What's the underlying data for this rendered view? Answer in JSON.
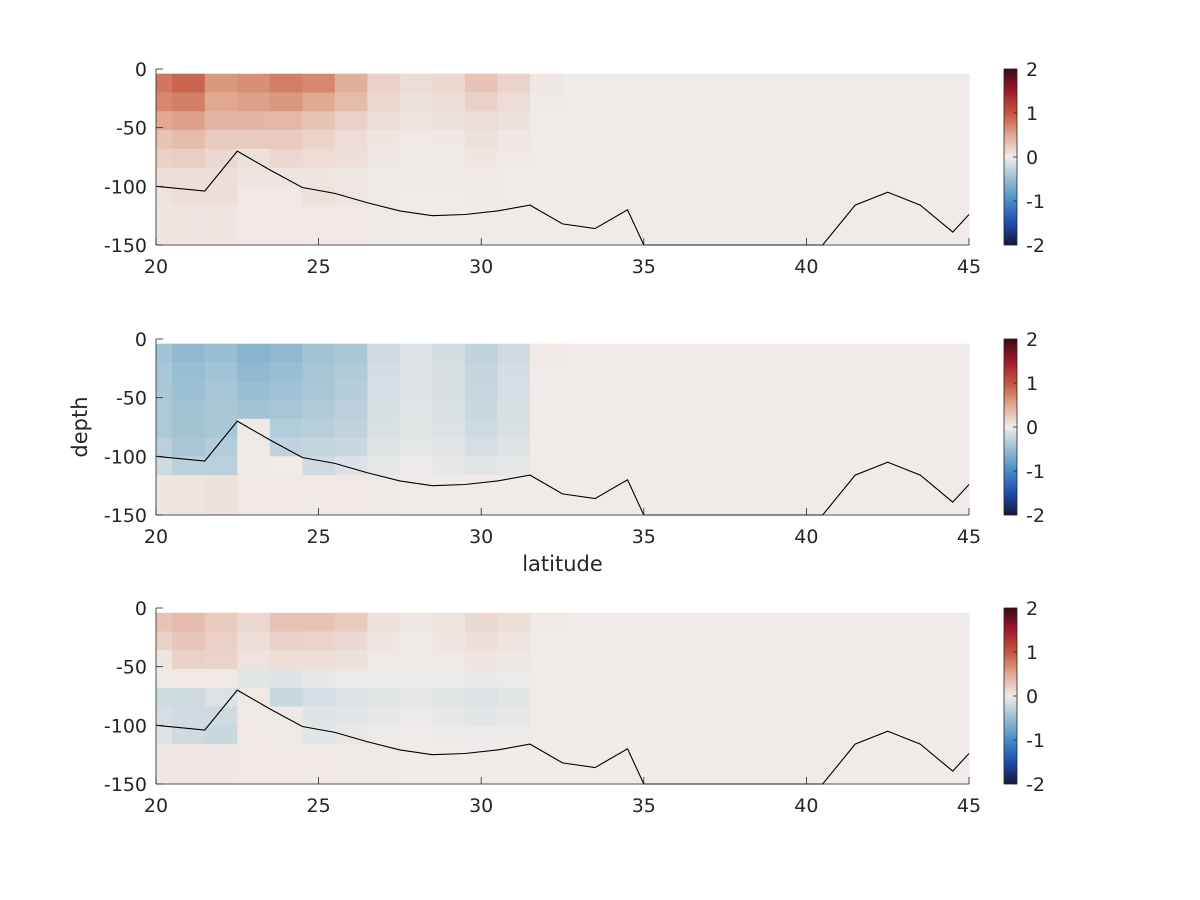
{
  "figure": {
    "background": "#ffffff"
  },
  "chart_data": [
    {
      "type": "heatmap",
      "title": "",
      "xlabel": "",
      "ylabel": "",
      "xlim": [
        20,
        45
      ],
      "ylim": [
        -150,
        0
      ],
      "xticks": [
        "20",
        "25",
        "30",
        "35",
        "40",
        "45"
      ],
      "yticks": [
        "0",
        "-50",
        "-100",
        "-150"
      ],
      "colorbar": {
        "clim": [
          -2,
          2
        ],
        "ticks": [
          "2",
          "1",
          "0",
          "-1",
          "-2"
        ]
      },
      "bottom_line": {
        "x": [
          20,
          21.5,
          22.5,
          23.5,
          24.5,
          25.5,
          26.5,
          27.5,
          28.5,
          29.5,
          30.5,
          31.5,
          32.5,
          33.5,
          34.5,
          35,
          36,
          37,
          38,
          39,
          40,
          40.5,
          41.5,
          42.5,
          43.5,
          44.5,
          45
        ],
        "y": [
          -100,
          -104,
          -70,
          -86,
          -101,
          -106,
          -114,
          -121,
          -125,
          -124,
          -121,
          -116,
          -132,
          -136,
          -120,
          -150,
          -150,
          -150,
          -150,
          -150,
          -150,
          -150,
          -116,
          -105,
          -116,
          -139,
          -124
        ]
      },
      "cells": {
        "x_edges": [
          20,
          20.5,
          21.5,
          22.5,
          23.5,
          24.5,
          25.5,
          26.5,
          27.5,
          28.5,
          29.5,
          30.5,
          31.5,
          32.5,
          45
        ],
        "y_edges": [
          -4,
          -20,
          -36,
          -52,
          -68,
          -84,
          -100,
          -116,
          -150
        ],
        "values": [
          [
            0.8,
            0.9,
            0.6,
            0.65,
            0.75,
            0.7,
            0.45,
            0.2,
            0.12,
            0.15,
            0.3,
            0.18,
            0.04,
            0.01
          ],
          [
            0.7,
            0.75,
            0.5,
            0.55,
            0.6,
            0.5,
            0.35,
            0.15,
            0.08,
            0.1,
            0.2,
            0.12,
            0.02,
            0.01
          ],
          [
            0.5,
            0.55,
            0.4,
            0.4,
            0.38,
            0.3,
            0.2,
            0.1,
            0.06,
            0.08,
            0.12,
            0.08,
            0.01,
            0.01
          ],
          [
            0.3,
            0.35,
            0.25,
            0.25,
            0.25,
            0.18,
            0.12,
            0.05,
            0.03,
            0.04,
            0.08,
            0.04,
            0.01,
            0.01
          ],
          [
            0.2,
            0.22,
            0.15,
            0.08,
            0.15,
            0.12,
            0.1,
            0.04,
            0.02,
            0.02,
            0.05,
            0.03,
            0.01,
            0.01
          ],
          [
            0.1,
            0.1,
            0.1,
            0.05,
            0.05,
            0.05,
            0.04,
            0.02,
            0.02,
            0.02,
            0.02,
            0.01,
            0.01,
            0.01
          ],
          [
            0.06,
            0.1,
            0.1,
            0.03,
            0.03,
            0.08,
            0.05,
            0.02,
            0.01,
            0.01,
            0.02,
            0.01,
            0.01,
            0.01
          ],
          [
            0.05,
            0.05,
            0.05,
            0.03,
            0.03,
            0.03,
            0.03,
            0.02,
            0.01,
            0.01,
            0.01,
            0.01,
            0.01,
            0.01
          ]
        ]
      }
    },
    {
      "type": "heatmap",
      "title": "",
      "xlabel": "latitude",
      "ylabel": "depth",
      "xlim": [
        20,
        45
      ],
      "ylim": [
        -150,
        0
      ],
      "xticks": [
        "20",
        "25",
        "30",
        "35",
        "40",
        "45"
      ],
      "yticks": [
        "0",
        "-50",
        "-100",
        "-150"
      ],
      "colorbar": {
        "clim": [
          -2,
          2
        ],
        "ticks": [
          "2",
          "1",
          "0",
          "-1",
          "-2"
        ]
      },
      "bottom_line": {
        "x": [
          20,
          21.5,
          22.5,
          23.5,
          24.5,
          25.5,
          26.5,
          27.5,
          28.5,
          29.5,
          30.5,
          31.5,
          32.5,
          33.5,
          34.5,
          35,
          36,
          37,
          38,
          39,
          40,
          40.5,
          41.5,
          42.5,
          43.5,
          44.5,
          45
        ],
        "y": [
          -100,
          -104,
          -70,
          -86,
          -101,
          -106,
          -114,
          -121,
          -125,
          -124,
          -121,
          -116,
          -132,
          -136,
          -120,
          -150,
          -150,
          -150,
          -150,
          -150,
          -150,
          -150,
          -116,
          -105,
          -116,
          -139,
          -124
        ]
      },
      "cells": {
        "x_edges": [
          20,
          20.5,
          21.5,
          22.5,
          23.5,
          24.5,
          25.5,
          26.5,
          27.5,
          28.5,
          29.5,
          30.5,
          31.5,
          32.5,
          45
        ],
        "y_edges": [
          -4,
          -20,
          -36,
          -52,
          -68,
          -84,
          -100,
          -116,
          -150
        ],
        "values": [
          [
            -0.45,
            -0.55,
            -0.5,
            -0.6,
            -0.55,
            -0.45,
            -0.4,
            -0.18,
            -0.12,
            -0.16,
            -0.28,
            -0.18,
            0.03,
            0.01
          ],
          [
            -0.4,
            -0.5,
            -0.45,
            -0.55,
            -0.5,
            -0.42,
            -0.36,
            -0.16,
            -0.1,
            -0.14,
            -0.25,
            -0.16,
            0.01,
            0.01
          ],
          [
            -0.4,
            -0.48,
            -0.42,
            -0.5,
            -0.46,
            -0.4,
            -0.33,
            -0.15,
            -0.1,
            -0.14,
            -0.24,
            -0.15,
            0.01,
            0.01
          ],
          [
            -0.38,
            -0.45,
            -0.4,
            -0.45,
            -0.42,
            -0.36,
            -0.3,
            -0.14,
            -0.09,
            -0.13,
            -0.22,
            -0.14,
            0.01,
            0.01
          ],
          [
            -0.38,
            -0.45,
            -0.4,
            0.02,
            -0.35,
            -0.32,
            -0.28,
            -0.13,
            -0.08,
            -0.12,
            -0.2,
            -0.13,
            0.01,
            0.01
          ],
          [
            -0.3,
            -0.4,
            -0.35,
            0.02,
            -0.28,
            -0.25,
            -0.22,
            -0.1,
            -0.06,
            -0.09,
            -0.15,
            -0.1,
            0.01,
            0.01
          ],
          [
            -0.2,
            -0.3,
            -0.3,
            0.02,
            0.01,
            -0.18,
            -0.12,
            -0.05,
            -0.03,
            -0.05,
            -0.08,
            -0.05,
            0.01,
            0.01
          ],
          [
            0.05,
            0.05,
            0.08,
            0.03,
            0.03,
            0.03,
            0.03,
            0.02,
            0.01,
            0.01,
            0.01,
            0.01,
            0.01,
            0.01
          ]
        ]
      }
    },
    {
      "type": "heatmap",
      "title": "",
      "xlabel": "",
      "ylabel": "",
      "xlim": [
        20,
        45
      ],
      "ylim": [
        -150,
        0
      ],
      "xticks": [
        "20",
        "25",
        "30",
        "35",
        "40",
        "45"
      ],
      "yticks": [
        "0",
        "-50",
        "-100",
        "-150"
      ],
      "colorbar": {
        "clim": [
          -2,
          2
        ],
        "ticks": [
          "2",
          "1",
          "0",
          "-1",
          "-2"
        ]
      },
      "bottom_line": {
        "x": [
          20,
          21.5,
          22.5,
          23.5,
          24.5,
          25.5,
          26.5,
          27.5,
          28.5,
          29.5,
          30.5,
          31.5,
          32.5,
          33.5,
          34.5,
          35,
          36,
          37,
          38,
          39,
          40,
          40.5,
          41.5,
          42.5,
          43.5,
          44.5,
          45
        ],
        "y": [
          -100,
          -104,
          -70,
          -86,
          -101,
          -106,
          -114,
          -121,
          -125,
          -124,
          -121,
          -116,
          -132,
          -136,
          -120,
          -150,
          -150,
          -150,
          -150,
          -150,
          -150,
          -150,
          -116,
          -105,
          -116,
          -139,
          -124
        ]
      },
      "cells": {
        "x_edges": [
          20,
          20.5,
          21.5,
          22.5,
          23.5,
          24.5,
          25.5,
          26.5,
          27.5,
          28.5,
          29.5,
          30.5,
          31.5,
          32.5,
          45
        ],
        "y_edges": [
          -4,
          -20,
          -36,
          -52,
          -68,
          -84,
          -100,
          -116,
          -150
        ],
        "values": [
          [
            0.3,
            0.35,
            0.25,
            0.15,
            0.3,
            0.3,
            0.25,
            0.08,
            0.04,
            0.06,
            0.15,
            0.1,
            0.02,
            0.01
          ],
          [
            0.2,
            0.28,
            0.2,
            0.1,
            0.2,
            0.18,
            0.15,
            0.05,
            0.02,
            0.05,
            0.1,
            0.06,
            0.01,
            0.01
          ],
          [
            0.05,
            0.2,
            0.18,
            0.07,
            0.1,
            0.1,
            0.08,
            0.03,
            0.02,
            0.03,
            0.06,
            0.04,
            0.01,
            0.01
          ],
          [
            0.02,
            0.03,
            0.03,
            -0.08,
            -0.1,
            -0.05,
            -0.03,
            -0.02,
            -0.02,
            -0.03,
            -0.04,
            -0.02,
            0.01,
            0.01
          ],
          [
            -0.2,
            -0.2,
            -0.12,
            0.03,
            -0.22,
            -0.15,
            -0.12,
            -0.08,
            -0.05,
            -0.08,
            -0.12,
            -0.08,
            0.01,
            0.01
          ],
          [
            -0.15,
            -0.18,
            -0.18,
            0.03,
            0.02,
            -0.1,
            -0.08,
            -0.05,
            -0.03,
            -0.05,
            -0.08,
            -0.05,
            0.01,
            0.01
          ],
          [
            -0.1,
            -0.18,
            -0.22,
            0.03,
            0.02,
            -0.08,
            -0.05,
            -0.02,
            -0.01,
            -0.02,
            -0.03,
            -0.02,
            0.01,
            0.01
          ],
          [
            0.04,
            0.04,
            0.04,
            0.03,
            0.03,
            0.03,
            0.02,
            0.02,
            0.01,
            0.01,
            0.01,
            0.01,
            0.01,
            0.01
          ]
        ]
      }
    }
  ]
}
